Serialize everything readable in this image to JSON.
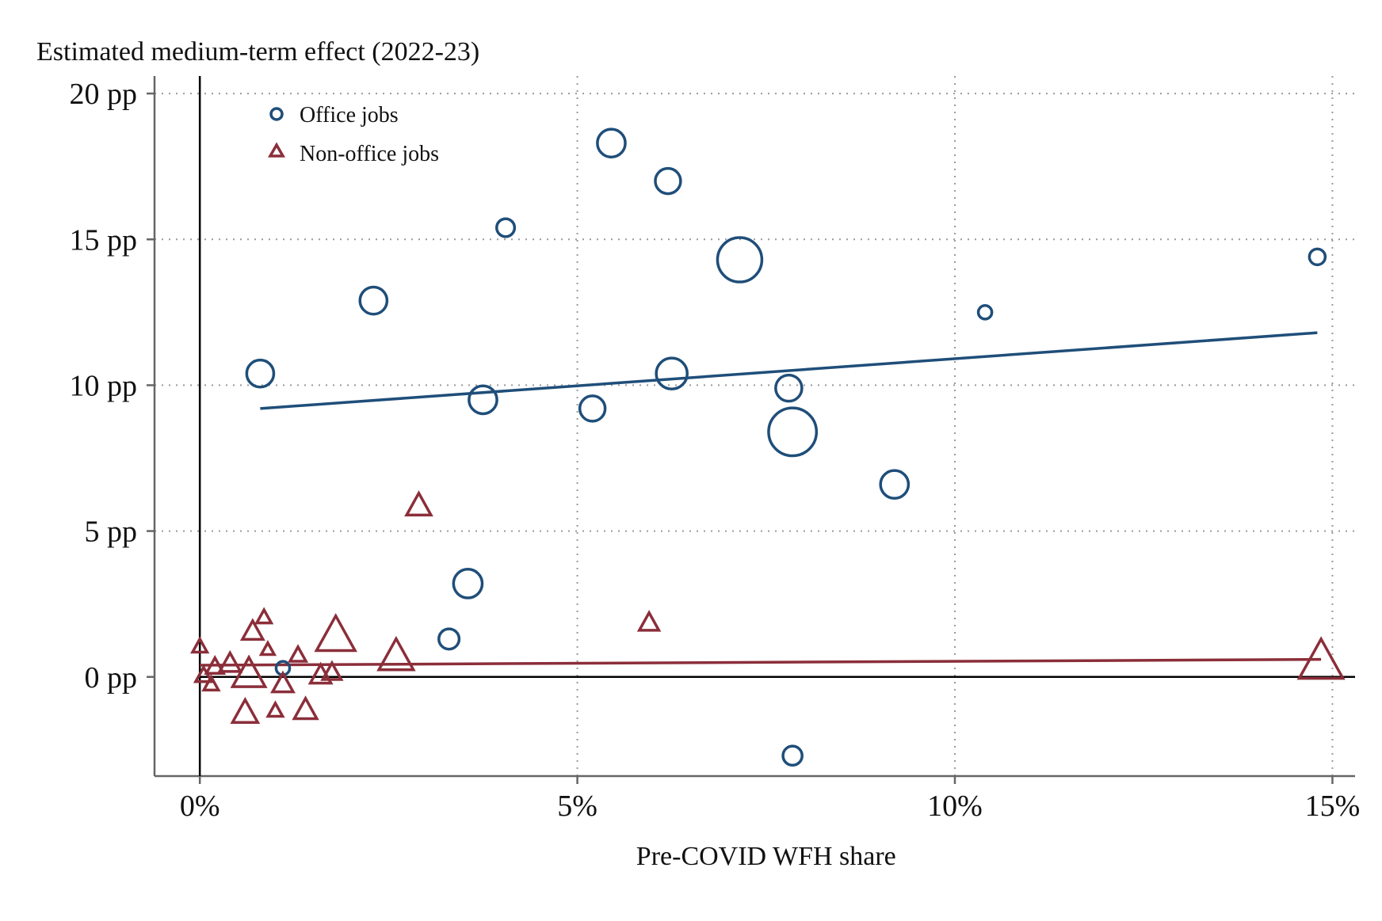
{
  "chart_data": {
    "type": "scatter",
    "title": "",
    "ylabel": "Estimated medium-term effect (2022-23)",
    "xlabel": "Pre-COVID WFH share",
    "xlim": [
      -0.6,
      15.3
    ],
    "ylim": [
      -3.4,
      20.6
    ],
    "x_ticks": [
      {
        "value": 0,
        "label": "0%"
      },
      {
        "value": 5,
        "label": "5%"
      },
      {
        "value": 10,
        "label": "10%"
      },
      {
        "value": 15,
        "label": "15%"
      }
    ],
    "y_ticks": [
      {
        "value": 0,
        "label": "0 pp"
      },
      {
        "value": 5,
        "label": "5 pp"
      },
      {
        "value": 10,
        "label": "10 pp"
      },
      {
        "value": 15,
        "label": "15 pp"
      },
      {
        "value": 20,
        "label": "20 pp"
      }
    ],
    "grid": true,
    "legend_position": "top-left",
    "series": [
      {
        "name": "Office jobs",
        "marker": "circle",
        "color": "#1f4e79",
        "fit": {
          "x": [
            0.8,
            14.8
          ],
          "y": [
            9.2,
            11.8
          ]
        },
        "points": [
          {
            "x": 0.8,
            "y": 10.4,
            "w": 1.6
          },
          {
            "x": 1.1,
            "y": 0.3,
            "w": 0.4
          },
          {
            "x": 2.3,
            "y": 12.9,
            "w": 1.6
          },
          {
            "x": 3.3,
            "y": 1.3,
            "w": 0.9
          },
          {
            "x": 3.55,
            "y": 3.2,
            "w": 1.8
          },
          {
            "x": 3.75,
            "y": 9.5,
            "w": 1.7
          },
          {
            "x": 4.05,
            "y": 15.4,
            "w": 0.7
          },
          {
            "x": 5.2,
            "y": 9.2,
            "w": 1.4
          },
          {
            "x": 5.45,
            "y": 18.3,
            "w": 1.7
          },
          {
            "x": 6.2,
            "y": 17.0,
            "w": 1.4
          },
          {
            "x": 6.25,
            "y": 10.4,
            "w": 2.1
          },
          {
            "x": 7.15,
            "y": 14.3,
            "w": 4.3
          },
          {
            "x": 7.8,
            "y": 9.9,
            "w": 1.5
          },
          {
            "x": 7.85,
            "y": 8.4,
            "w": 5.0
          },
          {
            "x": 7.85,
            "y": -2.7,
            "w": 0.8
          },
          {
            "x": 9.2,
            "y": 6.6,
            "w": 1.7
          },
          {
            "x": 10.4,
            "y": 12.5,
            "w": 0.4
          },
          {
            "x": 14.8,
            "y": 14.4,
            "w": 0.55
          }
        ]
      },
      {
        "name": "Non-office jobs",
        "marker": "triangle",
        "color": "#8b2e3a",
        "fit": {
          "x": [
            0.0,
            14.85
          ],
          "y": [
            0.4,
            0.6
          ]
        },
        "points": [
          {
            "x": 0.0,
            "y": 1.0,
            "w": 0.5
          },
          {
            "x": 0.05,
            "y": 0.0,
            "w": 0.6
          },
          {
            "x": 0.15,
            "y": -0.3,
            "w": 0.5
          },
          {
            "x": 0.2,
            "y": 0.3,
            "w": 0.7
          },
          {
            "x": 0.4,
            "y": 0.4,
            "w": 1.0
          },
          {
            "x": 0.6,
            "y": -1.3,
            "w": 1.5
          },
          {
            "x": 0.65,
            "y": 0.0,
            "w": 2.5
          },
          {
            "x": 0.7,
            "y": 1.5,
            "w": 1.0
          },
          {
            "x": 0.85,
            "y": 2.0,
            "w": 0.5
          },
          {
            "x": 0.9,
            "y": 0.9,
            "w": 0.4
          },
          {
            "x": 1.0,
            "y": -1.2,
            "w": 0.5
          },
          {
            "x": 1.1,
            "y": -0.3,
            "w": 1.0
          },
          {
            "x": 1.3,
            "y": 0.7,
            "w": 0.6
          },
          {
            "x": 1.4,
            "y": -1.2,
            "w": 1.2
          },
          {
            "x": 1.6,
            "y": 0.0,
            "w": 1.0
          },
          {
            "x": 1.75,
            "y": 0.1,
            "w": 0.8
          },
          {
            "x": 1.8,
            "y": 1.3,
            "w": 3.5
          },
          {
            "x": 2.6,
            "y": 0.6,
            "w": 2.8
          },
          {
            "x": 2.9,
            "y": 5.8,
            "w": 1.4
          },
          {
            "x": 5.95,
            "y": 1.8,
            "w": 0.9
          },
          {
            "x": 14.85,
            "y": 0.4,
            "w": 4.5
          }
        ]
      }
    ]
  }
}
